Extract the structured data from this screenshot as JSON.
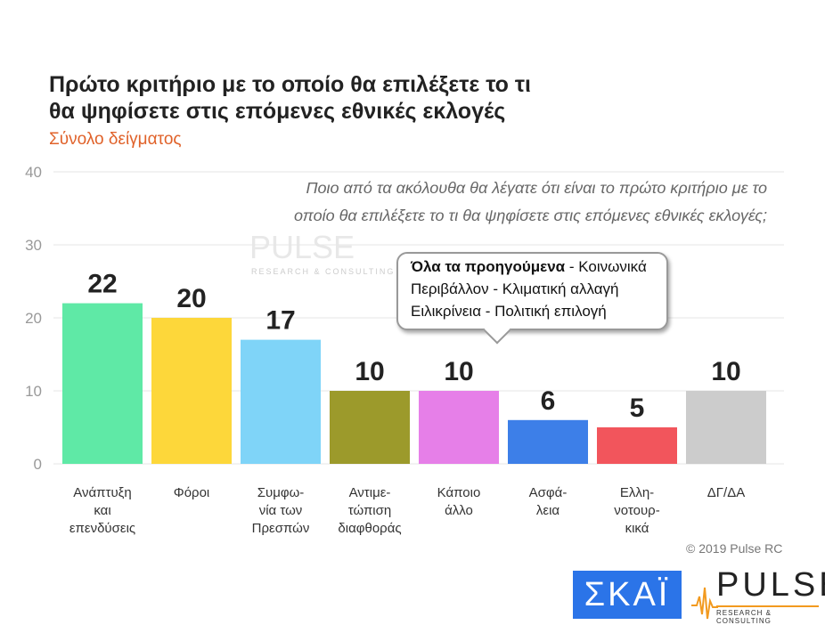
{
  "title_line1": "Πρώτο κριτήριο με το οποίο θα επιλέξετε το τι",
  "title_line2": "θα ψηφίσετε στις επόμενες εθνικές εκλογές",
  "subtitle": "Σύνολο δείγματος",
  "question_line1": "Ποιο από τα ακόλουθα θα λέγατε ότι είναι το πρώτο κριτήριο με το",
  "question_line2": "οποίο θα επιλέξετε το τι θα ψηφίσετε στις επόμενες εθνικές εκλογές;",
  "tooltip": {
    "bold": "Όλα τα προηγούμενα",
    "line1_rest": " - Κοινωνικά",
    "line2": "Περιβάλλον - Κλιματική αλλαγή",
    "line3": "Ειλικρίνεια - Πολιτική επιλογή"
  },
  "copyright": "© 2019 Pulse RC",
  "logos": {
    "skai": "ΣΚΑΪ",
    "pulse": "PULSE",
    "pulse_sub": "RESEARCH & CONSULTING",
    "watermark": "RESEARCH & CONSULTING"
  },
  "chart_data": {
    "type": "bar",
    "categories": [
      [
        "Ανάπτυξη",
        "και",
        "επενδύσεις"
      ],
      [
        "Φόροι"
      ],
      [
        "Συμφω-",
        "νία των",
        "Πρεσπών"
      ],
      [
        "Αντιμε-",
        "τώπιση",
        "διαφθοράς"
      ],
      [
        "Κάποιο",
        "άλλο"
      ],
      [
        "Ασφά-",
        "λεια"
      ],
      [
        "Ελλη-",
        "νοτουρ-",
        "κικά"
      ],
      [
        "ΔΓ/ΔΑ"
      ]
    ],
    "values": [
      22,
      20,
      17,
      10,
      10,
      6,
      5,
      10
    ],
    "colors": [
      "#5fe9a6",
      "#fdd73a",
      "#7fd4f8",
      "#9c9a2b",
      "#e67fe8",
      "#3d7fe8",
      "#f2555c",
      "#cccccc"
    ],
    "ylim": [
      0,
      40
    ],
    "yticks": [
      0,
      10,
      20,
      30,
      40
    ],
    "grid": true
  }
}
